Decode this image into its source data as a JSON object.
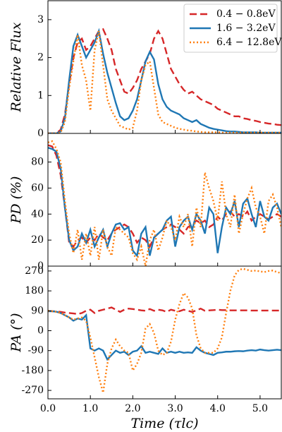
{
  "chart_data": [
    {
      "type": "line",
      "ylabel": "Relative Flux",
      "ylim": [
        0,
        3.5
      ],
      "yticks": [
        0,
        1,
        2,
        3
      ],
      "legend": "upper right",
      "x": [
        0,
        0.1,
        0.2,
        0.3,
        0.4,
        0.5,
        0.6,
        0.7,
        0.8,
        0.9,
        1,
        1.1,
        1.2,
        1.3,
        1.4,
        1.5,
        1.6,
        1.7,
        1.8,
        1.9,
        2,
        2.1,
        2.2,
        2.3,
        2.4,
        2.5,
        2.6,
        2.7,
        2.8,
        2.9,
        3,
        3.1,
        3.2,
        3.3,
        3.4,
        3.5,
        3.6,
        3.7,
        3.8,
        3.9,
        4,
        4.1,
        4.2,
        4.3,
        4.4,
        4.5,
        4.6,
        4.7,
        4.8,
        4.9,
        5,
        5.1,
        5.2,
        5.3,
        5.4,
        5.5
      ],
      "series": [
        {
          "name": "0.4 − 0.8eV",
          "color": "#d62728",
          "linestyle": "dashed",
          "values": [
            0,
            0,
            0,
            0.1,
            0.5,
            1.3,
            2.0,
            2.4,
            2.5,
            2.2,
            2.3,
            2.5,
            2.7,
            2.75,
            2.5,
            2.2,
            1.7,
            1.4,
            1.1,
            1.05,
            1.2,
            1.4,
            1.7,
            1.9,
            2.1,
            2.5,
            2.7,
            2.5,
            2.1,
            1.7,
            1.5,
            1.3,
            1.15,
            1.05,
            1.1,
            1.0,
            0.9,
            0.85,
            0.8,
            0.75,
            0.65,
            0.6,
            0.55,
            0.5,
            0.45,
            0.45,
            0.4,
            0.38,
            0.35,
            0.33,
            0.3,
            0.28,
            0.26,
            0.25,
            0.23,
            0.22
          ]
        },
        {
          "name": "1.6 − 3.2eV",
          "color": "#1f77b4",
          "linestyle": "solid",
          "values": [
            0,
            0,
            0,
            0.05,
            0.4,
            1.4,
            2.3,
            2.6,
            2.3,
            2.0,
            2.2,
            2.4,
            2.7,
            2.1,
            1.6,
            1.2,
            0.8,
            0.45,
            0.35,
            0.4,
            0.6,
            0.9,
            1.4,
            1.9,
            2.15,
            1.95,
            1.3,
            0.9,
            0.7,
            0.6,
            0.55,
            0.5,
            0.4,
            0.35,
            0.3,
            0.35,
            0.25,
            0.2,
            0.15,
            0.12,
            0.1,
            0.08,
            0.06,
            0.05,
            0.05,
            0.04,
            0.03,
            0.03,
            0.03,
            0.03,
            0.02,
            0.02,
            0.02,
            0.02,
            0.02,
            0.02
          ]
        },
        {
          "name": "6.4 − 12.8eV",
          "color": "#ff7f0e",
          "linestyle": "dotted",
          "values": [
            0,
            0,
            0,
            0.02,
            0.3,
            1.2,
            1.9,
            2.6,
            1.8,
            1.4,
            0.6,
            2.2,
            2.7,
            1.8,
            0.9,
            0.6,
            0.4,
            0.2,
            0.15,
            0.1,
            0.15,
            0.6,
            1.4,
            1.8,
            1.9,
            1.2,
            0.5,
            0.3,
            0.25,
            0.2,
            0.15,
            0.12,
            0.1,
            0.08,
            0.07,
            0.05,
            0.04,
            0.03,
            0.03,
            0.03,
            0.03,
            0.02,
            0.02,
            0.02,
            0.02,
            0.02,
            0.02,
            0.02,
            0.02,
            0.02,
            0.02,
            0.02,
            0.02,
            0.02,
            0.02,
            0.02
          ]
        }
      ]
    },
    {
      "type": "line",
      "ylabel": "PD (%)",
      "ylim": [
        0,
        102
      ],
      "yticks": [
        0,
        20,
        40,
        60,
        80
      ],
      "x": [
        0,
        0.1,
        0.2,
        0.3,
        0.4,
        0.5,
        0.6,
        0.7,
        0.8,
        0.9,
        1,
        1.1,
        1.2,
        1.3,
        1.4,
        1.5,
        1.6,
        1.7,
        1.8,
        1.9,
        2,
        2.1,
        2.2,
        2.3,
        2.4,
        2.5,
        2.6,
        2.7,
        2.8,
        2.9,
        3,
        3.1,
        3.2,
        3.3,
        3.4,
        3.5,
        3.6,
        3.7,
        3.8,
        3.9,
        4,
        4.1,
        4.2,
        4.3,
        4.4,
        4.5,
        4.6,
        4.7,
        4.8,
        4.9,
        5,
        5.1,
        5.2,
        5.3,
        5.4,
        5.5
      ],
      "series": [
        {
          "color": "#d62728",
          "linestyle": "dashed",
          "values": [
            93,
            92,
            85,
            70,
            45,
            18,
            15,
            20,
            22,
            18,
            22,
            20,
            25,
            22,
            20,
            25,
            28,
            30,
            32,
            30,
            25,
            18,
            22,
            20,
            15,
            22,
            25,
            28,
            30,
            32,
            30,
            28,
            25,
            30,
            32,
            35,
            33,
            35,
            30,
            32,
            38,
            35,
            40,
            42,
            38,
            40,
            38,
            42,
            35,
            38,
            40,
            38,
            36,
            38,
            40,
            38
          ]
        },
        {
          "color": "#1f77b4",
          "linestyle": "solid",
          "values": [
            91,
            90,
            88,
            75,
            45,
            20,
            12,
            15,
            25,
            18,
            28,
            15,
            22,
            28,
            15,
            25,
            32,
            33,
            28,
            30,
            12,
            8,
            25,
            30,
            8,
            22,
            25,
            28,
            35,
            38,
            15,
            30,
            35,
            38,
            28,
            40,
            35,
            25,
            45,
            40,
            10,
            30,
            45,
            40,
            50,
            30,
            48,
            52,
            40,
            30,
            50,
            38,
            35,
            45,
            48,
            40
          ]
        },
        {
          "color": "#ff7f0e",
          "linestyle": "dotted",
          "values": [
            95,
            96,
            90,
            80,
            50,
            25,
            10,
            28,
            5,
            25,
            8,
            30,
            5,
            28,
            15,
            8,
            30,
            28,
            25,
            22,
            10,
            5,
            15,
            0,
            20,
            28,
            12,
            22,
            35,
            30,
            20,
            38,
            30,
            40,
            15,
            45,
            30,
            72,
            60,
            50,
            35,
            65,
            40,
            30,
            55,
            25,
            40,
            52,
            60,
            45,
            38,
            25,
            50,
            55,
            45,
            30
          ]
        }
      ]
    },
    {
      "type": "line",
      "ylabel": "PA (°)",
      "ylim": [
        -308,
        292
      ],
      "yticks": [
        -270,
        -180,
        -90,
        0,
        90,
        180,
        270
      ],
      "xlabel": "Time (τlc)",
      "xlim": [
        0,
        5.5
      ],
      "xticks": [
        {
          "value": 0,
          "label": "0.0"
        },
        {
          "value": 1,
          "label": "1.0"
        },
        {
          "value": 2,
          "label": "2.0"
        },
        {
          "value": 3,
          "label": "3.0"
        },
        {
          "value": 4,
          "label": "4.0"
        },
        {
          "value": 5,
          "label": "5.0"
        }
      ],
      "x": [
        0,
        0.1,
        0.2,
        0.3,
        0.4,
        0.5,
        0.6,
        0.7,
        0.8,
        0.9,
        1,
        1.1,
        1.2,
        1.3,
        1.4,
        1.5,
        1.6,
        1.7,
        1.8,
        1.9,
        2,
        2.1,
        2.2,
        2.3,
        2.4,
        2.5,
        2.6,
        2.7,
        2.8,
        2.9,
        3,
        3.1,
        3.2,
        3.3,
        3.4,
        3.5,
        3.6,
        3.7,
        3.8,
        3.9,
        4,
        4.1,
        4.2,
        4.3,
        4.4,
        4.5,
        4.6,
        4.7,
        4.8,
        4.9,
        5,
        5.1,
        5.2,
        5.3,
        5.4,
        5.5
      ],
      "series": [
        {
          "color": "#d62728",
          "linestyle": "dashed",
          "values": [
            88,
            88,
            87,
            85,
            82,
            80,
            78,
            75,
            80,
            90,
            95,
            80,
            90,
            95,
            100,
            105,
            95,
            85,
            95,
            100,
            98,
            95,
            92,
            90,
            98,
            90,
            95,
            92,
            85,
            95,
            90,
            88,
            95,
            90,
            85,
            92,
            100,
            90,
            92,
            93,
            95,
            93,
            93,
            92,
            92,
            92,
            92,
            92,
            91,
            91,
            91,
            91,
            91,
            91,
            91,
            91
          ]
        },
        {
          "color": "#1f77b4",
          "linestyle": "solid",
          "values": [
            88,
            88,
            86,
            80,
            70,
            60,
            45,
            55,
            50,
            70,
            -80,
            -90,
            -80,
            -90,
            -130,
            -110,
            -90,
            -100,
            -95,
            -110,
            -95,
            -90,
            -70,
            -100,
            -95,
            -100,
            -105,
            -80,
            -100,
            -95,
            -100,
            -95,
            -100,
            -98,
            -100,
            -75,
            -90,
            -100,
            -105,
            -110,
            -100,
            -98,
            -95,
            -95,
            -93,
            -92,
            -93,
            -90,
            -88,
            -90,
            -85,
            -88,
            -90,
            -88,
            -86,
            -88
          ]
        },
        {
          "color": "#ff7f0e",
          "linestyle": "dotted",
          "values": [
            90,
            88,
            85,
            80,
            70,
            60,
            50,
            55,
            60,
            45,
            -30,
            -120,
            -210,
            -280,
            -150,
            -80,
            -40,
            -70,
            -90,
            -100,
            -180,
            -150,
            -100,
            10,
            30,
            -10,
            -90,
            -110,
            -100,
            -50,
            50,
            120,
            170,
            150,
            100,
            -20,
            -80,
            -100,
            -100,
            -100,
            -80,
            -30,
            80,
            180,
            250,
            275,
            280,
            275,
            270,
            272,
            268,
            265,
            270,
            272,
            265,
            260
          ]
        }
      ]
    }
  ]
}
